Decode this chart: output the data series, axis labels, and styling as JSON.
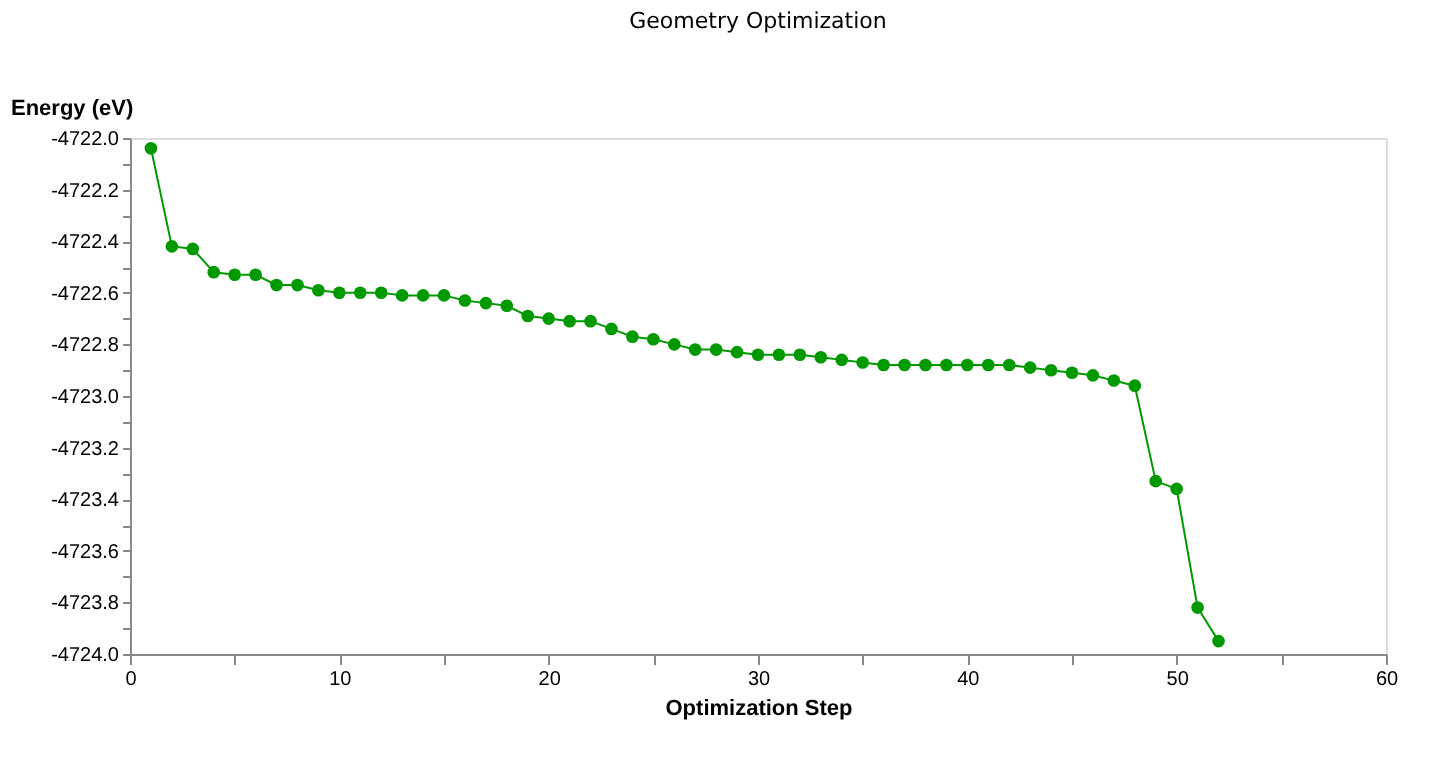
{
  "chart_data": {
    "type": "line",
    "title": "Geometry Optimization",
    "xlabel": "Optimization Step",
    "ylabel": "Energy (eV)",
    "x": [
      1,
      2,
      3,
      4,
      5,
      6,
      7,
      8,
      9,
      10,
      11,
      12,
      13,
      14,
      15,
      16,
      17,
      18,
      19,
      20,
      21,
      22,
      23,
      24,
      25,
      26,
      27,
      28,
      29,
      30,
      31,
      32,
      33,
      34,
      35,
      36,
      37,
      38,
      39,
      40,
      41,
      42,
      43,
      44,
      45,
      46,
      47,
      48,
      49,
      50,
      51,
      52
    ],
    "series": [
      {
        "color": "#009900",
        "values": [
          -4722.04,
          -4722.42,
          -4722.43,
          -4722.52,
          -4722.53,
          -4722.53,
          -4722.57,
          -4722.57,
          -4722.59,
          -4722.6,
          -4722.6,
          -4722.6,
          -4722.61,
          -4722.61,
          -4722.61,
          -4722.63,
          -4722.64,
          -4722.65,
          -4722.69,
          -4722.7,
          -4722.71,
          -4722.71,
          -4722.74,
          -4722.77,
          -4722.78,
          -4722.8,
          -4722.82,
          -4722.82,
          -4722.83,
          -4722.84,
          -4722.84,
          -4722.84,
          -4722.85,
          -4722.86,
          -4722.87,
          -4722.88,
          -4722.88,
          -4722.88,
          -4722.88,
          -4722.88,
          -4722.88,
          -4722.88,
          -4722.89,
          -4722.9,
          -4722.91,
          -4722.92,
          -4722.94,
          -4722.96,
          -4723.33,
          -4723.36,
          -4723.82,
          -4723.95
        ]
      }
    ],
    "xlim": [
      0,
      60
    ],
    "xticks": [
      0,
      {
        "value": 5,
        "label": null
      },
      10,
      {
        "value": 15,
        "label": null
      },
      20,
      {
        "value": 25,
        "label": null
      },
      30,
      {
        "value": 35,
        "label": null
      },
      40,
      {
        "value": 45,
        "label": null
      },
      50,
      {
        "value": 55,
        "label": null
      },
      60
    ],
    "ylim": [
      -4724.0,
      -4722.0
    ],
    "yticks": [
      {
        "value": -4722.0,
        "label": "-4722.0"
      },
      {
        "value": -4722.1,
        "label": null
      },
      {
        "value": -4722.2,
        "label": "-4722.2"
      },
      {
        "value": -4722.3,
        "label": null
      },
      {
        "value": -4722.4,
        "label": "-4722.4"
      },
      {
        "value": -4722.5,
        "label": null
      },
      {
        "value": -4722.6,
        "label": "-4722.6"
      },
      {
        "value": -4722.7,
        "label": null
      },
      {
        "value": -4722.8,
        "label": "-4722.8"
      },
      {
        "value": -4722.9,
        "label": null
      },
      {
        "value": -4723.0,
        "label": "-4723.0"
      },
      {
        "value": -4723.1,
        "label": null
      },
      {
        "value": -4723.2,
        "label": "-4723.2"
      },
      {
        "value": -4723.3,
        "label": null
      },
      {
        "value": -4723.4,
        "label": "-4723.4"
      },
      {
        "value": -4723.5,
        "label": null
      },
      {
        "value": -4723.6,
        "label": "-4723.6"
      },
      {
        "value": -4723.7,
        "label": null
      },
      {
        "value": -4723.8,
        "label": "-4723.8"
      },
      {
        "value": -4723.9,
        "label": null
      },
      {
        "value": -4724.0,
        "label": "-4724.0"
      }
    ],
    "grid": false,
    "legend": false,
    "marker": "circle",
    "line_style": "solid"
  }
}
